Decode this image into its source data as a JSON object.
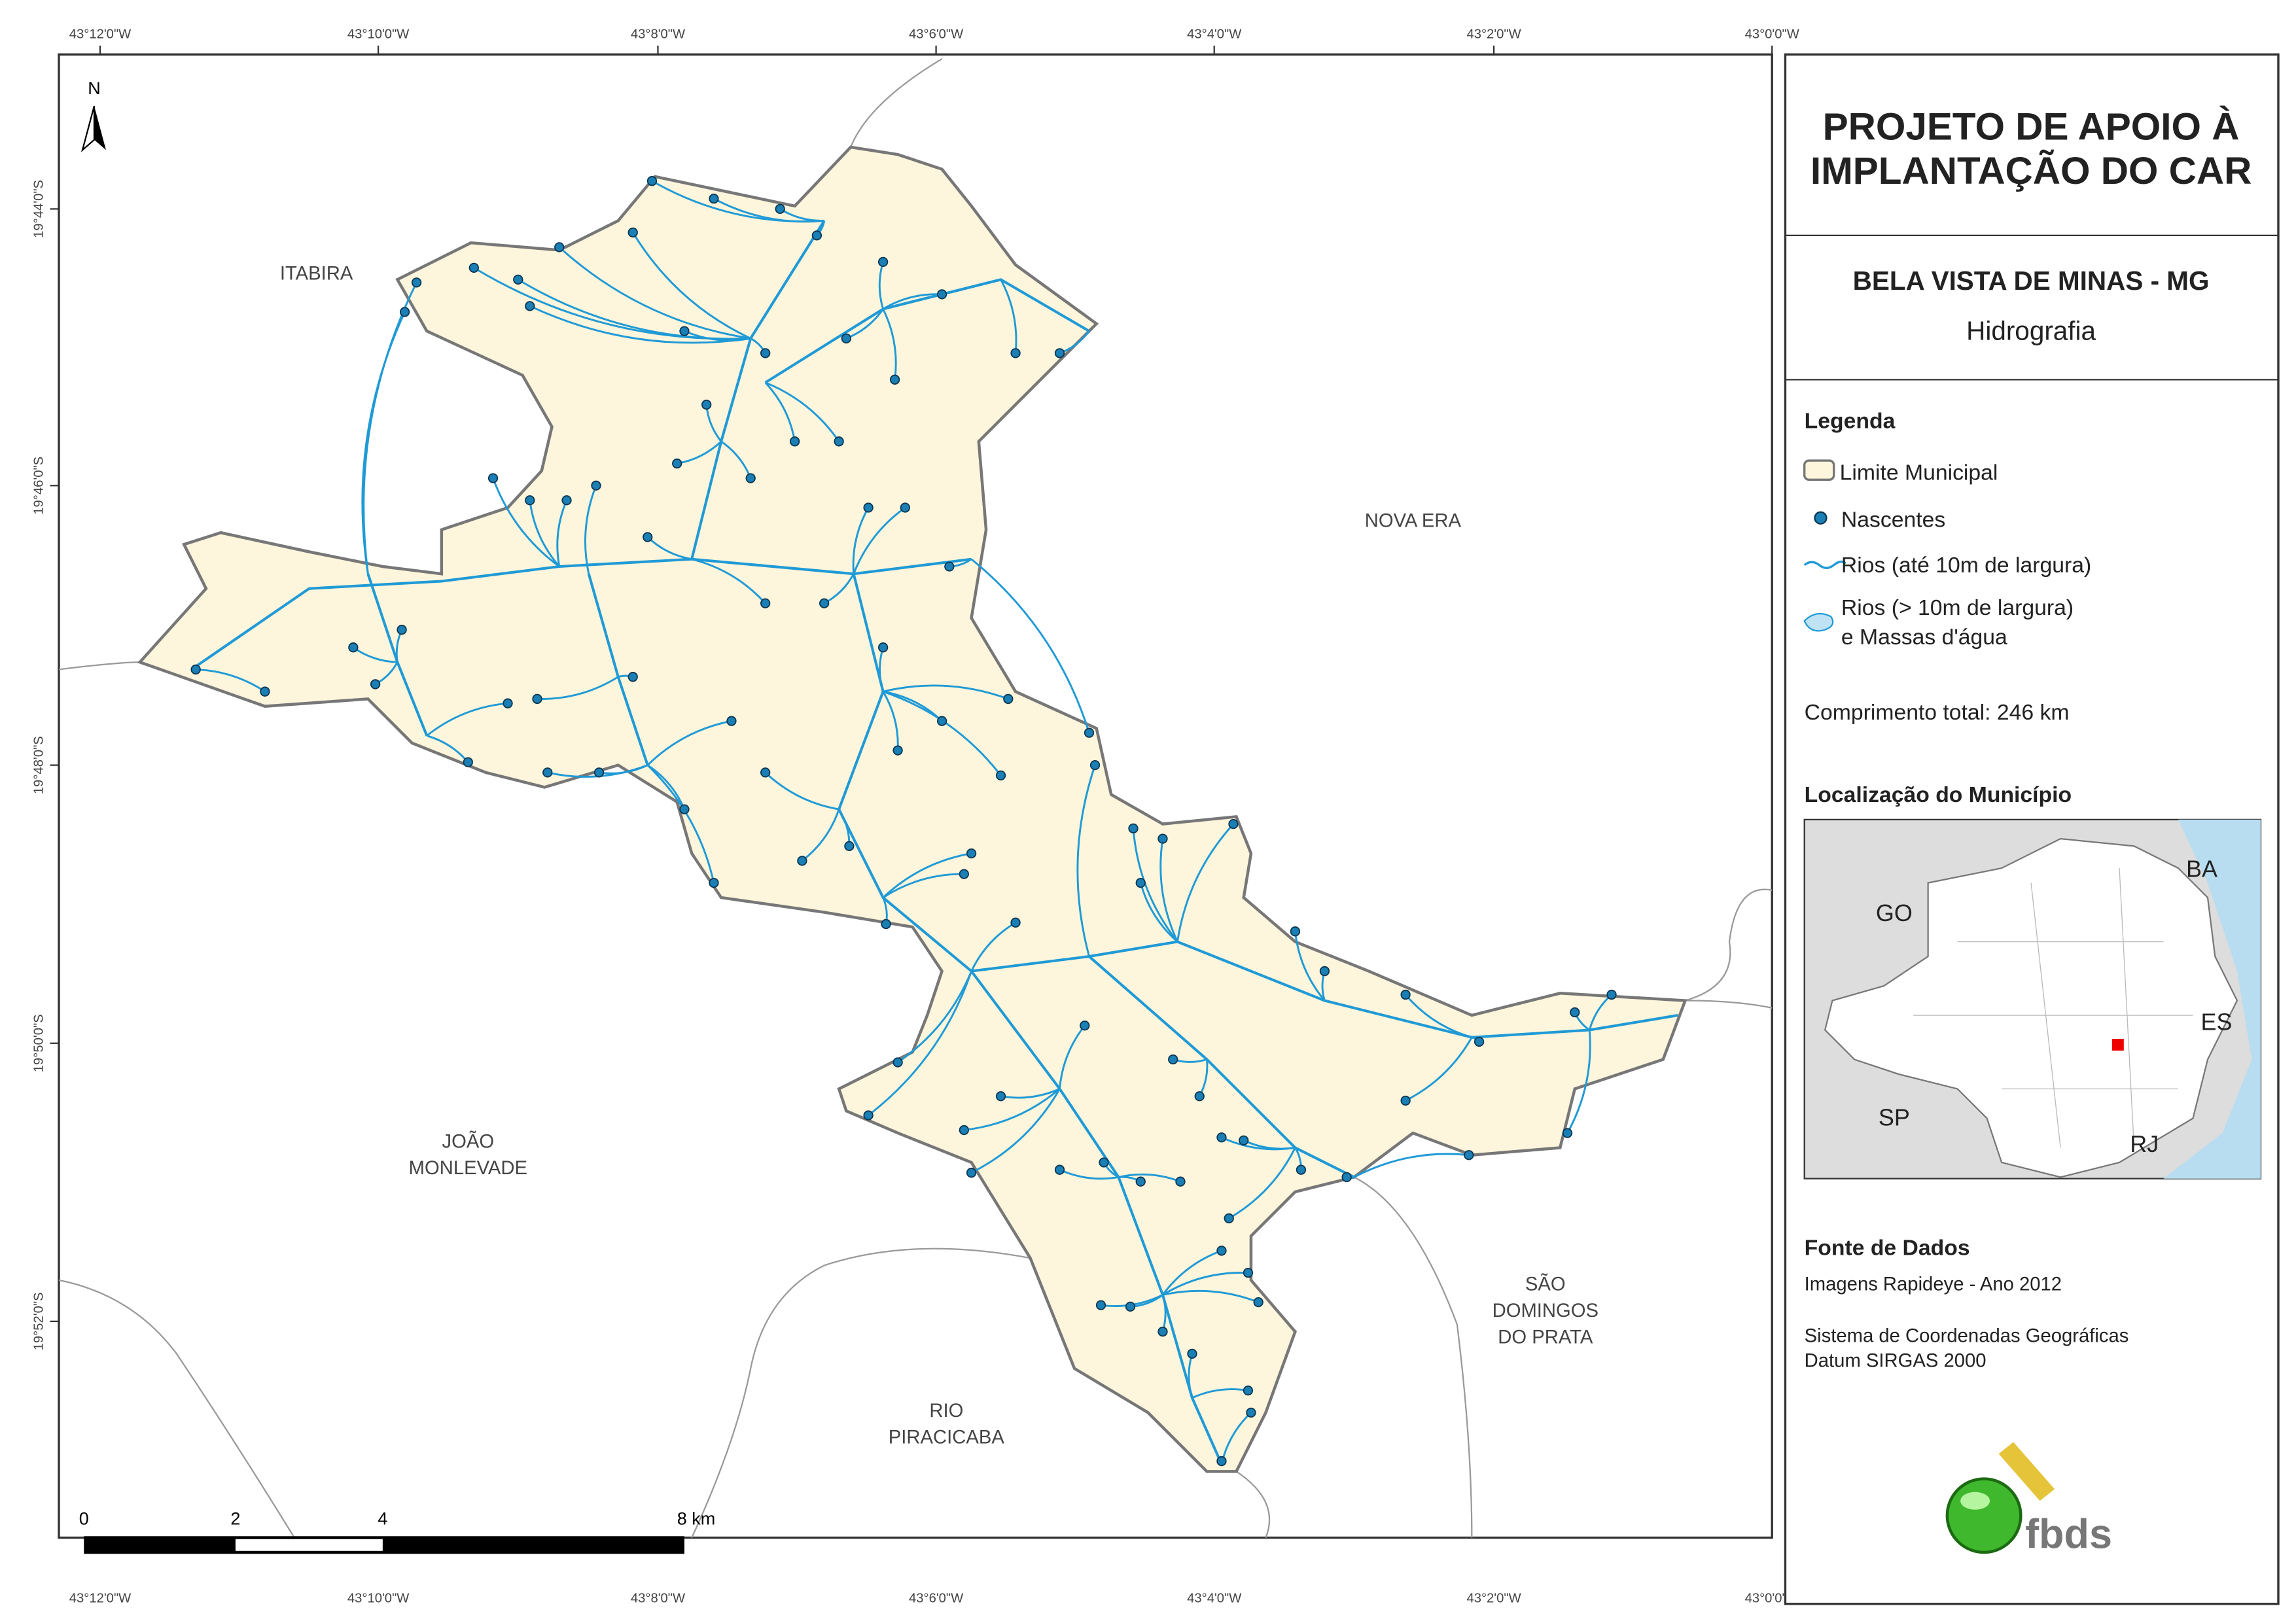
{
  "map": {
    "north": "N",
    "lon_labels": [
      "43°12'0\"W",
      "43°10'0\"W",
      "43°8'0\"W",
      "43°6'0\"W",
      "43°4'0\"W",
      "43°2'0\"W",
      "43°0'0\"W"
    ],
    "lat_labels": [
      "19°44'0\"S",
      "19°46'0\"S",
      "19°48'0\"S",
      "19°50'0\"S",
      "19°52'0\"S"
    ],
    "places": [
      [
        "ITABIRA"
      ],
      [
        "NOVA ERA"
      ],
      [
        "JOÃO",
        "MONLEVADE"
      ],
      [
        "SÃO",
        "DOMINGOS",
        "DO PRATA"
      ],
      [
        "RIO",
        "PIRACICABA"
      ]
    ]
  },
  "scale": {
    "labels": [
      "0",
      "2",
      "4",
      "8 km"
    ]
  },
  "panel": {
    "title": [
      "PROJETO DE APOIO À",
      "IMPLANTAÇÃO DO CAR"
    ],
    "municipality": "BELA VISTA DE MINAS - MG",
    "theme": "Hidrografia",
    "legend": {
      "title": "Legenda",
      "items": [
        [
          "Limite Municipal"
        ],
        [
          "Nascentes"
        ],
        [
          "Rios (até 10m de largura)"
        ],
        [
          "Rios (> 10m de largura)",
          "e Massas d'água"
        ]
      ],
      "length": "Comprimento total:  246 km"
    },
    "location": {
      "title": "Localização do Município",
      "states": [
        "BA",
        "GO",
        "ES",
        "SP",
        "RJ"
      ]
    },
    "sources": {
      "title": "Fonte de Dados",
      "lines": [
        "Imagens Rapideye - Ano 2012",
        "Sistema de Coordenadas Geográficas",
        "Datum SIRGAS 2000"
      ]
    },
    "logo": "fbds"
  }
}
